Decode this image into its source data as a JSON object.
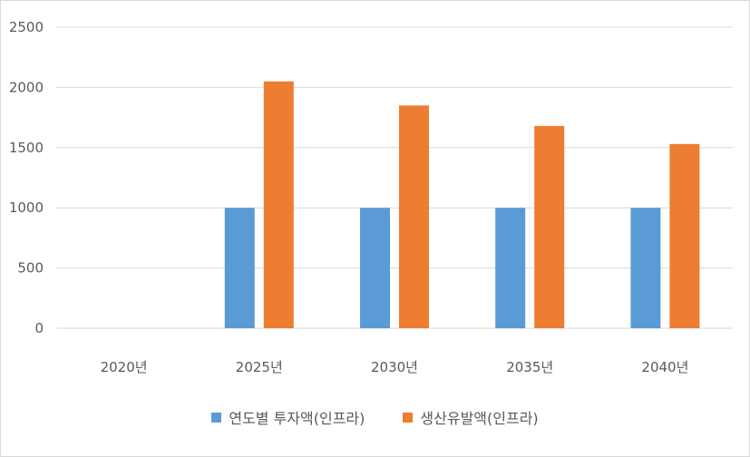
{
  "chart_data": {
    "type": "bar",
    "categories": [
      "2020년",
      "2025년",
      "2030년",
      "2035년",
      "2040년"
    ],
    "series": [
      {
        "name": "연도별 투자액(인프라)",
        "color": "#5b9bd5",
        "values": [
          0,
          1000,
          1000,
          1000,
          1000
        ]
      },
      {
        "name": "생산유발액(인프라)",
        "color": "#ed7d31",
        "values": [
          0,
          2050,
          1850,
          1680,
          1530
        ]
      }
    ],
    "title": "",
    "xlabel": "",
    "ylabel": "",
    "ylim": [
      0,
      2500
    ],
    "yticks": [
      "0",
      "500",
      "1000",
      "1500",
      "2000",
      "2500"
    ],
    "grid": true,
    "legend_position": "bottom"
  }
}
